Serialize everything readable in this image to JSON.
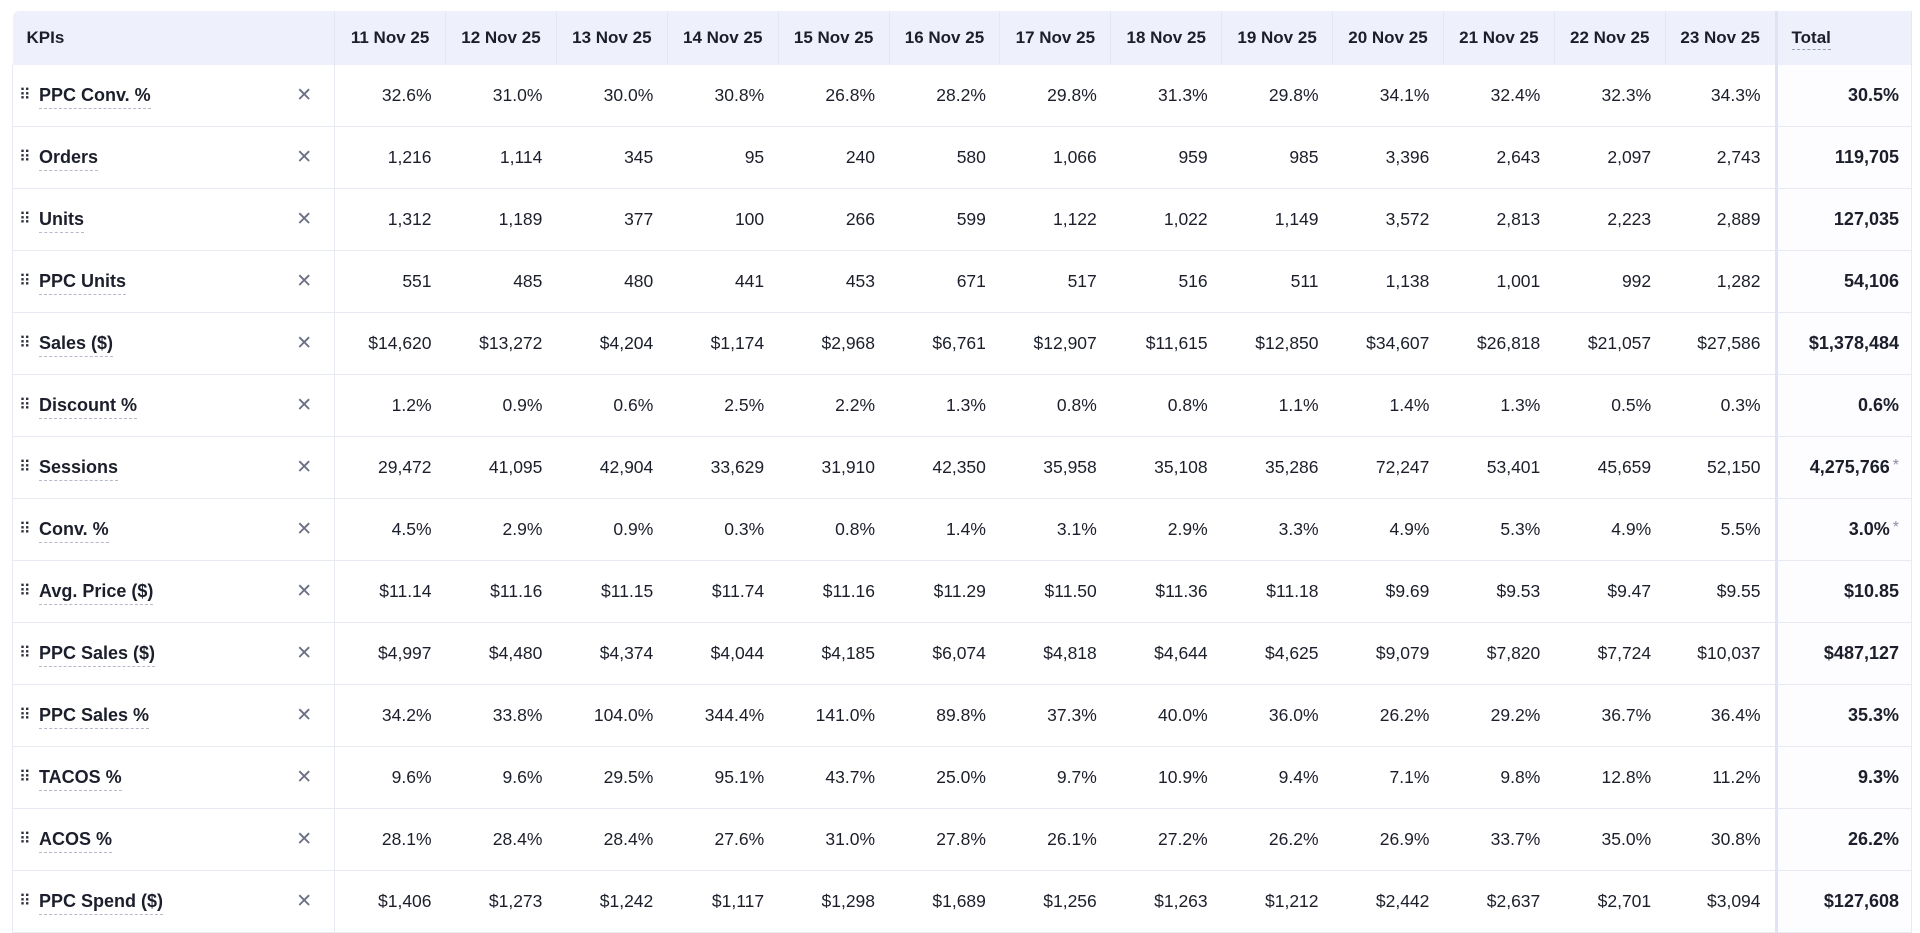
{
  "header": {
    "kpis_label": "KPIs",
    "total_label": "Total",
    "dates": [
      "11 Nov 25",
      "12 Nov 25",
      "13 Nov 25",
      "14 Nov 25",
      "15 Nov 25",
      "16 Nov 25",
      "17 Nov 25",
      "18 Nov 25",
      "19 Nov 25",
      "20 Nov 25",
      "21 Nov 25",
      "22 Nov 25",
      "23 Nov 25"
    ]
  },
  "icons": {
    "drag": "⠿",
    "remove": "✕"
  },
  "rows": [
    {
      "label": "PPC Conv. %",
      "values": [
        "32.6%",
        "31.0%",
        "30.0%",
        "30.8%",
        "26.8%",
        "28.2%",
        "29.8%",
        "31.3%",
        "29.8%",
        "34.1%",
        "32.4%",
        "32.3%",
        "34.3%"
      ],
      "total": "30.5%",
      "total_note": ""
    },
    {
      "label": "Orders",
      "values": [
        "1,216",
        "1,114",
        "345",
        "95",
        "240",
        "580",
        "1,066",
        "959",
        "985",
        "3,396",
        "2,643",
        "2,097",
        "2,743"
      ],
      "total": "119,705",
      "total_note": ""
    },
    {
      "label": "Units",
      "values": [
        "1,312",
        "1,189",
        "377",
        "100",
        "266",
        "599",
        "1,122",
        "1,022",
        "1,149",
        "3,572",
        "2,813",
        "2,223",
        "2,889"
      ],
      "total": "127,035",
      "total_note": ""
    },
    {
      "label": "PPC Units",
      "values": [
        "551",
        "485",
        "480",
        "441",
        "453",
        "671",
        "517",
        "516",
        "511",
        "1,138",
        "1,001",
        "992",
        "1,282"
      ],
      "total": "54,106",
      "total_note": ""
    },
    {
      "label": "Sales ($)",
      "values": [
        "$14,620",
        "$13,272",
        "$4,204",
        "$1,174",
        "$2,968",
        "$6,761",
        "$12,907",
        "$11,615",
        "$12,850",
        "$34,607",
        "$26,818",
        "$21,057",
        "$27,586"
      ],
      "total": "$1,378,484",
      "total_note": ""
    },
    {
      "label": "Discount %",
      "values": [
        "1.2%",
        "0.9%",
        "0.6%",
        "2.5%",
        "2.2%",
        "1.3%",
        "0.8%",
        "0.8%",
        "1.1%",
        "1.4%",
        "1.3%",
        "0.5%",
        "0.3%"
      ],
      "total": "0.6%",
      "total_note": ""
    },
    {
      "label": "Sessions",
      "values": [
        "29,472",
        "41,095",
        "42,904",
        "33,629",
        "31,910",
        "42,350",
        "35,958",
        "35,108",
        "35,286",
        "72,247",
        "53,401",
        "45,659",
        "52,150"
      ],
      "total": "4,275,766",
      "total_note": "*"
    },
    {
      "label": "Conv. %",
      "values": [
        "4.5%",
        "2.9%",
        "0.9%",
        "0.3%",
        "0.8%",
        "1.4%",
        "3.1%",
        "2.9%",
        "3.3%",
        "4.9%",
        "5.3%",
        "4.9%",
        "5.5%"
      ],
      "total": "3.0%",
      "total_note": "*"
    },
    {
      "label": "Avg. Price ($)",
      "values": [
        "$11.14",
        "$11.16",
        "$11.15",
        "$11.74",
        "$11.16",
        "$11.29",
        "$11.50",
        "$11.36",
        "$11.18",
        "$9.69",
        "$9.53",
        "$9.47",
        "$9.55"
      ],
      "total": "$10.85",
      "total_note": ""
    },
    {
      "label": "PPC Sales ($)",
      "values": [
        "$4,997",
        "$4,480",
        "$4,374",
        "$4,044",
        "$4,185",
        "$6,074",
        "$4,818",
        "$4,644",
        "$4,625",
        "$9,079",
        "$7,820",
        "$7,724",
        "$10,037"
      ],
      "total": "$487,127",
      "total_note": ""
    },
    {
      "label": "PPC Sales %",
      "values": [
        "34.2%",
        "33.8%",
        "104.0%",
        "344.4%",
        "141.0%",
        "89.8%",
        "37.3%",
        "40.0%",
        "36.0%",
        "26.2%",
        "29.2%",
        "36.7%",
        "36.4%"
      ],
      "total": "35.3%",
      "total_note": ""
    },
    {
      "label": "TACOS %",
      "values": [
        "9.6%",
        "9.6%",
        "29.5%",
        "95.1%",
        "43.7%",
        "25.0%",
        "9.7%",
        "10.9%",
        "9.4%",
        "7.1%",
        "9.8%",
        "12.8%",
        "11.2%"
      ],
      "total": "9.3%",
      "total_note": ""
    },
    {
      "label": "ACOS %",
      "values": [
        "28.1%",
        "28.4%",
        "28.4%",
        "27.6%",
        "31.0%",
        "27.8%",
        "26.1%",
        "27.2%",
        "26.2%",
        "26.9%",
        "33.7%",
        "35.0%",
        "30.8%"
      ],
      "total": "26.2%",
      "total_note": ""
    },
    {
      "label": "PPC Spend ($)",
      "values": [
        "$1,406",
        "$1,273",
        "$1,242",
        "$1,117",
        "$1,298",
        "$1,689",
        "$1,256",
        "$1,263",
        "$1,212",
        "$2,442",
        "$2,637",
        "$2,701",
        "$3,094"
      ],
      "total": "$127,608",
      "total_note": ""
    }
  ]
}
